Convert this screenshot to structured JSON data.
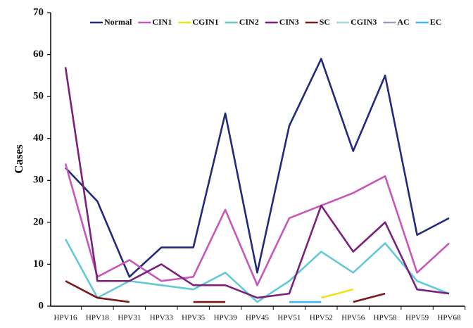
{
  "chart_data": {
    "type": "line",
    "y_label": "Cases",
    "categories": [
      "HPV16",
      "HPV18",
      "HPV31",
      "HPV33",
      "HPV35",
      "HPV39",
      "HPV45",
      "HPV51",
      "HPV52",
      "HPV56",
      "HPV58",
      "HPV59",
      "HPV68"
    ],
    "ylim": [
      0,
      70
    ],
    "yticks": [
      0,
      10,
      20,
      30,
      40,
      50,
      60,
      70
    ],
    "series": [
      {
        "name": "Normal",
        "color": "#232a7c",
        "values": [
          33,
          25,
          7,
          14,
          14,
          46,
          8,
          43,
          59,
          37,
          55,
          17,
          21
        ]
      },
      {
        "name": "CIN1",
        "color": "#c957b8",
        "values": [
          34,
          7,
          11,
          6,
          7,
          23,
          5,
          21,
          24,
          27,
          31,
          8,
          15
        ]
      },
      {
        "name": "CGIN1",
        "color": "#f2e21a",
        "values": [
          null,
          null,
          null,
          null,
          null,
          null,
          null,
          null,
          2,
          4,
          null,
          null,
          null
        ]
      },
      {
        "name": "CIN2",
        "color": "#62c9d6",
        "values": [
          16,
          2,
          6,
          5,
          4,
          8,
          1,
          6,
          13,
          8,
          15,
          6,
          3
        ]
      },
      {
        "name": "CIN3",
        "color": "#7b217b",
        "values": [
          57,
          6,
          6,
          10,
          5,
          5,
          2,
          3,
          24,
          13,
          20,
          4,
          3
        ]
      },
      {
        "name": "SC",
        "color": "#7a1c1c",
        "values": [
          6,
          2,
          1,
          null,
          1,
          1,
          null,
          null,
          null,
          1,
          3,
          null,
          null
        ]
      },
      {
        "name": "CGIN3",
        "color": "#9ed8d8",
        "values": [
          null,
          null,
          null,
          null,
          null,
          null,
          null,
          null,
          null,
          null,
          null,
          null,
          null
        ]
      },
      {
        "name": "AC",
        "color": "#a09ac8",
        "values": [
          null,
          null,
          null,
          null,
          null,
          null,
          null,
          null,
          null,
          null,
          null,
          null,
          null
        ]
      },
      {
        "name": "EC",
        "color": "#3fb8e8",
        "values": [
          null,
          null,
          null,
          null,
          null,
          null,
          null,
          1,
          1,
          null,
          null,
          null,
          null
        ]
      }
    ]
  }
}
